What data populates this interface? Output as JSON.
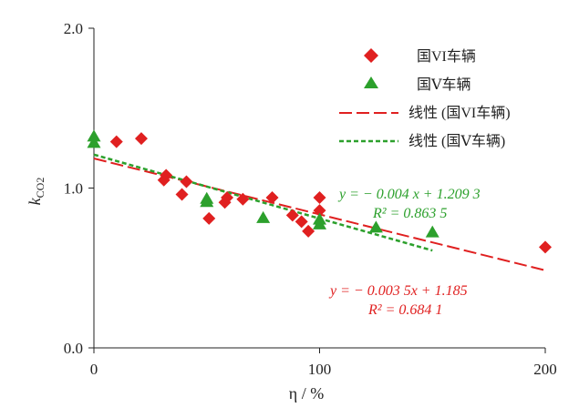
{
  "chart_data": {
    "type": "scatter",
    "title": "",
    "xlabel": "η / %",
    "ylabel_main": "k",
    "ylabel_sub": "CO2",
    "xlim": [
      0,
      200
    ],
    "ylim": [
      0.0,
      2.0
    ],
    "x_ticks": [
      {
        "value": 0,
        "label": "0"
      },
      {
        "value": 100,
        "label": "100"
      },
      {
        "value": 200,
        "label": "200"
      }
    ],
    "y_ticks": [
      {
        "value": 0.0,
        "label": "0.0"
      },
      {
        "value": 1.0,
        "label": "1.0"
      },
      {
        "value": 2.0,
        "label": "2.0"
      }
    ],
    "grid": false,
    "legend_position": "top-right",
    "series": [
      {
        "name": "国VI车辆",
        "marker": "diamond",
        "color": "#e02020",
        "points": [
          [
            10,
            1.29
          ],
          [
            21,
            1.31
          ],
          [
            31,
            1.05
          ],
          [
            32,
            1.08
          ],
          [
            39,
            0.96
          ],
          [
            41,
            1.04
          ],
          [
            51,
            0.81
          ],
          [
            58,
            0.91
          ],
          [
            59,
            0.94
          ],
          [
            66,
            0.93
          ],
          [
            79,
            0.94
          ],
          [
            88,
            0.83
          ],
          [
            92,
            0.79
          ],
          [
            95,
            0.73
          ],
          [
            100,
            0.86
          ],
          [
            100,
            0.94
          ],
          [
            200,
            0.63
          ]
        ]
      },
      {
        "name": "国Ⅴ车辆",
        "marker": "triangle",
        "color": "#2ca02c",
        "points": [
          [
            0,
            1.32
          ],
          [
            0,
            1.28
          ],
          [
            50,
            0.93
          ],
          [
            50,
            0.91
          ],
          [
            75,
            0.81
          ],
          [
            100,
            0.77
          ],
          [
            100,
            0.8
          ],
          [
            125,
            0.75
          ],
          [
            150,
            0.72
          ]
        ]
      }
    ],
    "fits": [
      {
        "name": "线性 (国VI车辆)",
        "color": "#e02020",
        "dash": "long-dash",
        "slope": -0.0035,
        "intercept": 1.185,
        "x_range": [
          0,
          200
        ],
        "equation": "y = − 0.003 5x + 1.185",
        "r2": "R² = 0.684 1"
      },
      {
        "name": "线性 (国Ⅴ车辆)",
        "color": "#2ca02c",
        "dash": "short-dash",
        "slope": -0.004,
        "intercept": 1.2093,
        "x_range": [
          0,
          150
        ],
        "equation": "y = − 0.004 x + 1.209 3",
        "r2": "R² = 0.863 5"
      }
    ]
  }
}
